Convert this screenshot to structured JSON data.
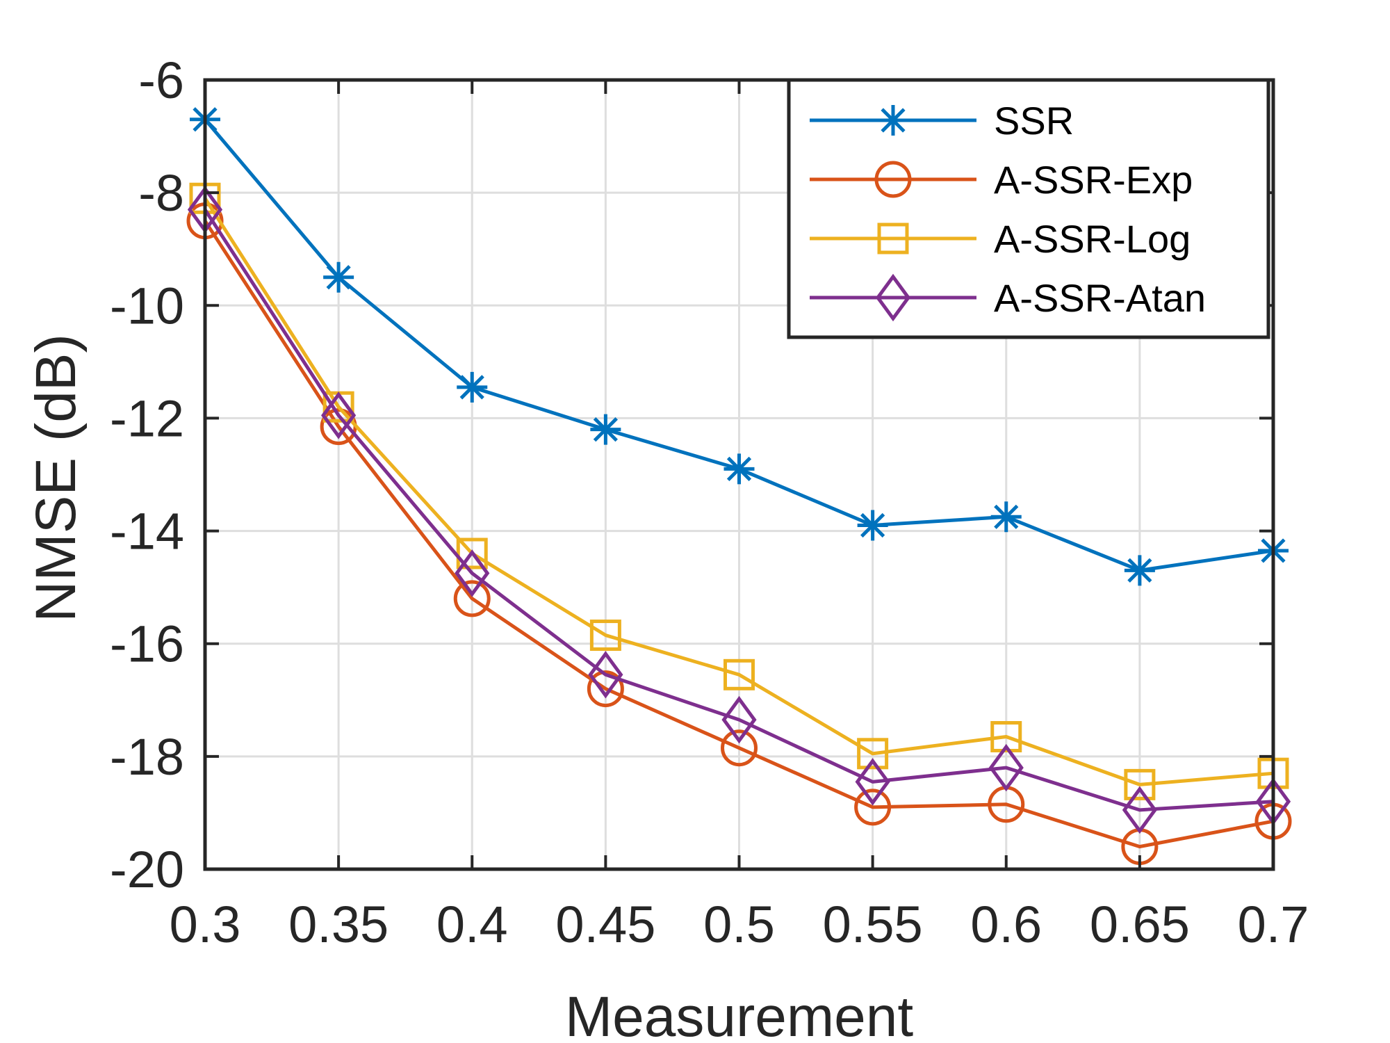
{
  "chart_data": {
    "type": "line",
    "title": "",
    "xlabel": "Measurement",
    "ylabel": "NMSE (dB)",
    "x": [
      0.3,
      0.35,
      0.4,
      0.45,
      0.5,
      0.55,
      0.6,
      0.65,
      0.7
    ],
    "x_tick_labels": [
      "0.3",
      "0.35",
      "0.4",
      "0.45",
      "0.5",
      "0.55",
      "0.6",
      "0.65",
      "0.7"
    ],
    "y_ticks": [
      -6,
      -8,
      -10,
      -12,
      -14,
      -16,
      -18,
      -20
    ],
    "y_tick_labels": [
      "-6",
      "-8",
      "-10",
      "-12",
      "-14",
      "-16",
      "-18",
      "-20"
    ],
    "xlim": [
      0.3,
      0.7
    ],
    "ylim": [
      -20,
      -6
    ],
    "grid": true,
    "legend_position": "top-right",
    "series": [
      {
        "name": "SSR",
        "color": "#0072BD",
        "marker": "asterisk",
        "values": [
          -6.7,
          -9.5,
          -11.45,
          -12.2,
          -12.9,
          -13.9,
          -13.75,
          -14.7,
          -14.35
        ]
      },
      {
        "name": "A-SSR-Exp",
        "color": "#D95319",
        "marker": "circle",
        "values": [
          -8.5,
          -12.15,
          -15.2,
          -16.8,
          -17.85,
          -18.9,
          -18.85,
          -19.6,
          -19.15
        ]
      },
      {
        "name": "A-SSR-Log",
        "color": "#EDB120",
        "marker": "square",
        "values": [
          -8.1,
          -11.8,
          -14.4,
          -15.85,
          -16.55,
          -17.95,
          -17.65,
          -18.5,
          -18.3
        ]
      },
      {
        "name": "A-SSR-Atan",
        "color": "#7E2F8E",
        "marker": "diamond",
        "values": [
          -8.3,
          -11.95,
          -14.75,
          -16.55,
          -17.35,
          -18.45,
          -18.2,
          -18.95,
          -18.8
        ]
      }
    ]
  }
}
